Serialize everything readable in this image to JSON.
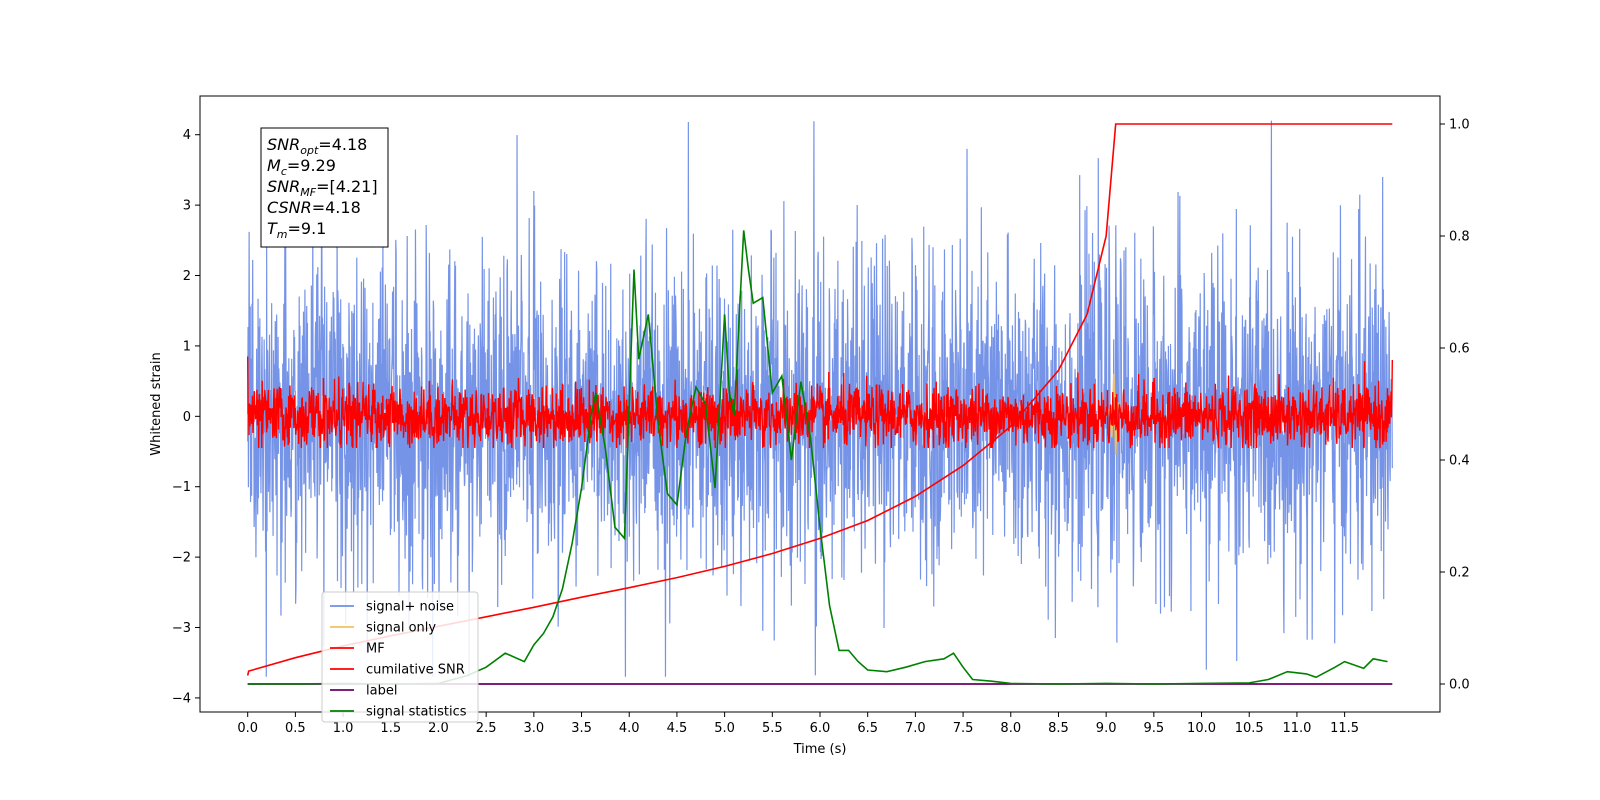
{
  "chart_data": {
    "type": "line",
    "title": "",
    "xlabel": "Time (s)",
    "ylabel": "Whitened strain",
    "y2label": "",
    "xlim": [
      -0.5,
      12.5
    ],
    "ylim": [
      -4.2,
      4.55
    ],
    "y2lim": [
      -0.05,
      1.05
    ],
    "x_ticks": [
      "0.0",
      "0.5",
      "1.0",
      "1.5",
      "2.0",
      "2.5",
      "3.0",
      "3.5",
      "4.0",
      "4.5",
      "5.0",
      "5.5",
      "6.0",
      "6.5",
      "7.0",
      "7.5",
      "8.0",
      "8.5",
      "9.0",
      "9.5",
      "10.0",
      "10.5",
      "11.0",
      "11.5"
    ],
    "y_ticks": [
      "4",
      "3",
      "2",
      "1",
      "0",
      "−1",
      "−2",
      "−3",
      "−4"
    ],
    "y2_ticks": [
      "1.0",
      "0.8",
      "0.6",
      "0.4",
      "0.2",
      "0.0"
    ],
    "grid": false,
    "legend_placement": "lower-left",
    "legend": [
      {
        "name": "signal+ noise",
        "color": "#6f8ee6"
      },
      {
        "name": "signal only",
        "color": "#f5c060"
      },
      {
        "name": "MF",
        "color": "#ff0000"
      },
      {
        "name": "cumilative SNR",
        "color": "#ff0000"
      },
      {
        "name": "label",
        "color": "#6a006a"
      },
      {
        "name": "signal statistics",
        "color": "#008000"
      }
    ],
    "annotation": {
      "lines": [
        {
          "base": "SNR",
          "sub": "opt",
          "value": "=4.18"
        },
        {
          "base": "M",
          "sub": "c",
          "value": "=9.29"
        },
        {
          "base": "SNR",
          "sub": "MF",
          "value": "=[4.21]"
        },
        {
          "base": "CSNR",
          "sub": "",
          "value": "=4.18"
        },
        {
          "base": "T",
          "sub": "m",
          "value": "=9.1"
        }
      ]
    },
    "series": [
      {
        "name": "signal+ noise",
        "axis": "left",
        "color": "#6f8ee6",
        "x_range": [
          0.0,
          12.0
        ],
        "noise_std": 1.15,
        "extremes": {
          "max": 4.2,
          "min": -3.7
        },
        "peaks": [
          [
            4.62,
            4.18
          ],
          [
            3.0,
            3.2
          ],
          [
            11.9,
            3.4
          ],
          [
            5.95,
            -3.68
          ],
          [
            10.05,
            -3.6
          ]
        ]
      },
      {
        "name": "MF",
        "axis": "left",
        "color": "#ff0000",
        "x_range": [
          0.0,
          12.0
        ],
        "noise_std": 0.22,
        "extremes": {
          "max": 1.0,
          "min": -0.45
        }
      },
      {
        "name": "signal only",
        "axis": "left",
        "color": "#f5c060",
        "x": [
          9.0,
          9.03,
          9.06,
          9.08,
          9.1,
          9.12,
          9.15
        ],
        "y": [
          0.0,
          0.1,
          -0.3,
          0.6,
          -0.55,
          0.2,
          0.0
        ]
      },
      {
        "name": "cumilative SNR",
        "axis": "right",
        "color": "#ff0000",
        "x": [
          0.0,
          0.01,
          0.5,
          1.0,
          1.5,
          2.0,
          2.5,
          3.0,
          3.5,
          4.0,
          4.5,
          5.0,
          5.5,
          6.0,
          6.5,
          7.0,
          7.5,
          8.0,
          8.5,
          8.8,
          9.0,
          9.05,
          9.1,
          12.0
        ],
        "y": [
          0.015,
          0.023,
          0.047,
          0.068,
          0.086,
          0.103,
          0.12,
          0.137,
          0.155,
          0.172,
          0.19,
          0.21,
          0.233,
          0.26,
          0.292,
          0.335,
          0.39,
          0.46,
          0.56,
          0.66,
          0.8,
          0.9,
          1.0,
          1.0
        ]
      },
      {
        "name": "label",
        "axis": "right",
        "color": "#6a006a",
        "x": [
          0.0,
          12.0
        ],
        "y": [
          0.0,
          0.0
        ]
      },
      {
        "name": "signal statistics",
        "axis": "right",
        "color": "#008000",
        "x": [
          0.0,
          0.5,
          1.0,
          1.5,
          2.0,
          2.3,
          2.5,
          2.7,
          2.9,
          3.0,
          3.1,
          3.2,
          3.3,
          3.4,
          3.5,
          3.6,
          3.65,
          3.75,
          3.85,
          3.95,
          4.05,
          4.1,
          4.2,
          4.3,
          4.4,
          4.5,
          4.6,
          4.7,
          4.8,
          4.9,
          5.0,
          5.05,
          5.1,
          5.2,
          5.25,
          5.3,
          5.4,
          5.5,
          5.6,
          5.7,
          5.8,
          5.9,
          6.0,
          6.1,
          6.2,
          6.3,
          6.4,
          6.5,
          6.7,
          6.9,
          7.1,
          7.3,
          7.4,
          7.5,
          7.6,
          7.8,
          8.0,
          8.5,
          9.0,
          9.5,
          10.0,
          10.5,
          10.7,
          10.9,
          11.1,
          11.2,
          11.4,
          11.5,
          11.7,
          11.8,
          11.95
        ],
        "y": [
          0.0,
          0.0,
          0.001,
          0.0,
          0.001,
          0.015,
          0.03,
          0.055,
          0.04,
          0.07,
          0.09,
          0.12,
          0.17,
          0.25,
          0.35,
          0.48,
          0.52,
          0.42,
          0.28,
          0.26,
          0.74,
          0.58,
          0.66,
          0.47,
          0.34,
          0.32,
          0.45,
          0.53,
          0.5,
          0.35,
          0.66,
          0.52,
          0.48,
          0.81,
          0.74,
          0.68,
          0.69,
          0.52,
          0.55,
          0.4,
          0.54,
          0.44,
          0.28,
          0.14,
          0.06,
          0.06,
          0.04,
          0.025,
          0.022,
          0.03,
          0.04,
          0.045,
          0.055,
          0.03,
          0.008,
          0.005,
          0.001,
          0.0,
          0.001,
          0.0,
          0.001,
          0.002,
          0.008,
          0.022,
          0.018,
          0.012,
          0.03,
          0.04,
          0.028,
          0.045,
          0.04
        ]
      }
    ]
  }
}
